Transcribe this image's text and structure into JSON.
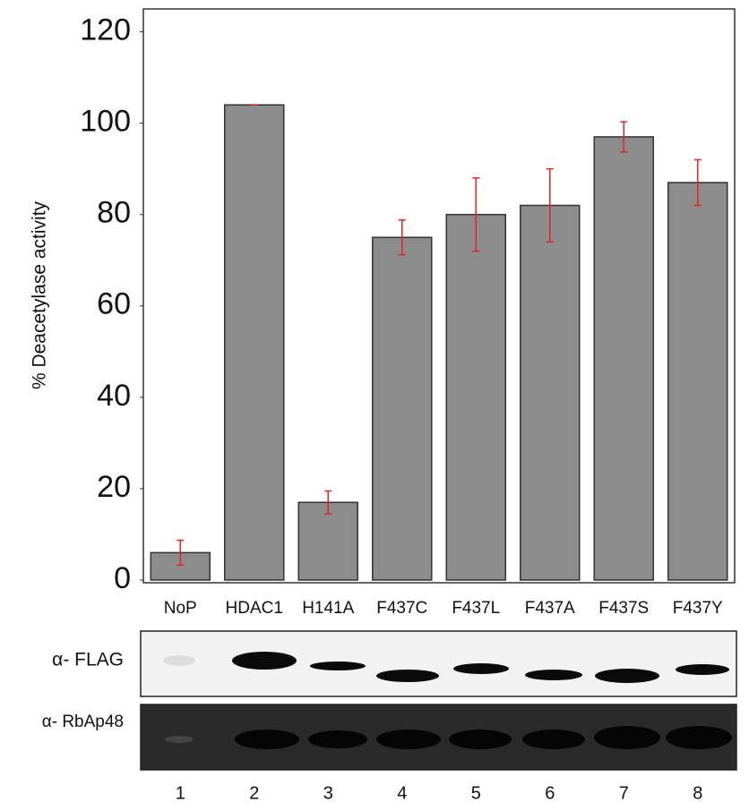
{
  "chart_data": {
    "type": "bar",
    "ylabel": "% Deacetylase activity",
    "categories": [
      "NoP",
      "HDAC1",
      "H141A",
      "F437C",
      "F437L",
      "F437A",
      "F437S",
      "F437Y"
    ],
    "values": [
      6,
      104,
      17,
      75,
      80,
      82,
      97,
      87
    ],
    "errors": [
      2.7,
      0,
      2.5,
      3.8,
      8,
      8,
      3.3,
      5
    ],
    "color": "#8c8c8c",
    "error_color": "#e8231f",
    "ylim": [
      0,
      125
    ],
    "yticks": [
      0,
      20,
      40,
      60,
      80,
      100,
      120
    ]
  },
  "blots": {
    "labels": [
      "α- FLAG",
      "α- RbAp48"
    ],
    "lanes": [
      "1",
      "2",
      "3",
      "4",
      "5",
      "6",
      "7",
      "8"
    ]
  }
}
